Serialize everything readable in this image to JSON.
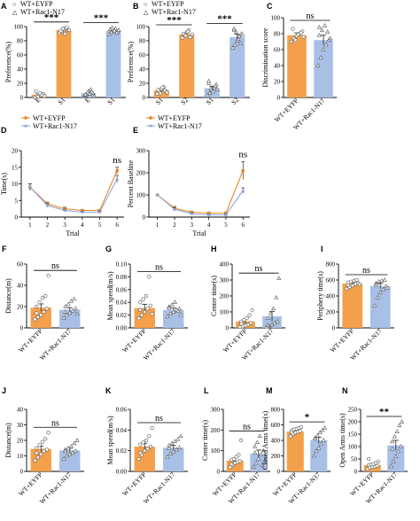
{
  "colors": {
    "eyfp": "#F4A04A",
    "rac": "#A8BFE6",
    "eyfp_line": "#E58A26",
    "rac_line": "#8FA5DC"
  },
  "legend": {
    "eyfp": "WT+EYFP",
    "rac": "WT+Rac1-N17"
  },
  "chart_data": [
    {
      "panel": "A",
      "type": "bar",
      "ylabel": "Preference(%)",
      "ylim": [
        0,
        100
      ],
      "yticks": [
        0,
        20,
        40,
        60,
        80,
        100
      ],
      "categories": [
        "E",
        "S1",
        "E",
        "S1"
      ],
      "groups": [
        "eyfp",
        "eyfp",
        "rac",
        "rac"
      ],
      "values": [
        4,
        95,
        6,
        94
      ],
      "errors": [
        1,
        1,
        1,
        1
      ],
      "points": [
        [
          0,
          2,
          4,
          3,
          5,
          9,
          1,
          6,
          3,
          2
        ],
        [
          91,
          93,
          96,
          98,
          95,
          94,
          97,
          90,
          99,
          95
        ],
        [
          2,
          4,
          9,
          11,
          6,
          3,
          7,
          5,
          8,
          2,
          4
        ],
        [
          89,
          92,
          95,
          97,
          93,
          96,
          98,
          94,
          91,
          95,
          96
        ]
      ],
      "legend": true,
      "sig": [
        {
          "from": 0,
          "to": 1,
          "text": "***"
        },
        {
          "from": 2,
          "to": 3,
          "text": "***"
        }
      ]
    },
    {
      "panel": "B",
      "type": "bar",
      "ylabel": "Preference(%)",
      "ylim": [
        0,
        100
      ],
      "yticks": [
        0,
        20,
        40,
        60,
        80,
        100
      ],
      "categories": [
        "S1",
        "S2",
        "S1",
        "S2"
      ],
      "groups": [
        "eyfp",
        "eyfp",
        "rac",
        "rac"
      ],
      "values": [
        10,
        89,
        13,
        85
      ],
      "errors": [
        2,
        2,
        3,
        4
      ],
      "points": [
        [
          5,
          8,
          12,
          15,
          9,
          11,
          6,
          14,
          10,
          7
        ],
        [
          84,
          88,
          92,
          95,
          86,
          90,
          87,
          93,
          85,
          89
        ],
        [
          3,
          6,
          10,
          14,
          18,
          20,
          12,
          8,
          16,
          11,
          23
        ],
        [
          70,
          74,
          80,
          86,
          90,
          95,
          92,
          82,
          76,
          88,
          97
        ]
      ],
      "legend": true,
      "sig": [
        {
          "from": 0,
          "to": 1,
          "text": "***"
        },
        {
          "from": 2,
          "to": 3,
          "text": "***"
        }
      ]
    },
    {
      "panel": "C",
      "type": "bar",
      "ylabel": "Discrimination score",
      "ylim": [
        0,
        100
      ],
      "yticks": [
        0,
        20,
        40,
        60,
        80,
        100
      ],
      "categories": [
        "WT+EYFP",
        "WT+Rac1-N17"
      ],
      "groups": [
        "eyfp",
        "rac"
      ],
      "values": [
        78,
        72
      ],
      "errors": [
        3,
        6
      ],
      "points": [
        [
          70,
          74,
          77,
          80,
          83,
          86,
          72,
          79,
          81,
          76
        ],
        [
          40,
          50,
          60,
          66,
          72,
          78,
          84,
          90,
          82,
          74,
          88
        ]
      ],
      "sig": [
        {
          "from": 0,
          "to": 1,
          "text": "ns"
        }
      ]
    },
    {
      "panel": "D",
      "type": "line",
      "xlabel": "Trial",
      "ylabel": "Time(s)",
      "ylim": [
        0,
        20
      ],
      "yticks": [
        0,
        5,
        10,
        15,
        20
      ],
      "x": [
        1,
        2,
        3,
        4,
        5,
        6
      ],
      "xlim": [
        0.5,
        6.4
      ],
      "series": [
        {
          "name": "WT+EYFP",
          "group": "eyfp",
          "values": [
            9,
            4,
            2.5,
            2,
            2,
            14
          ],
          "errors": [
            1,
            0.5,
            0.5,
            0.3,
            0.3,
            1
          ]
        },
        {
          "name": "WT+Rac1-N17",
          "group": "rac",
          "values": [
            9,
            3.5,
            2,
            1.5,
            1.5,
            11.5
          ],
          "errors": [
            1,
            0.5,
            0.4,
            0.3,
            0.3,
            1
          ]
        }
      ],
      "legend": true,
      "sig_text": "ns",
      "sig_x": 6
    },
    {
      "panel": "E",
      "type": "line",
      "xlabel": "Trial",
      "ylabel": "Percent Baseline",
      "ylim": [
        0,
        300
      ],
      "yticks": [
        0,
        100,
        200,
        300
      ],
      "x": [
        1,
        2,
        3,
        4,
        5,
        6
      ],
      "xlim": [
        0.5,
        6.4
      ],
      "series": [
        {
          "name": "WT+EYFP",
          "group": "eyfp",
          "values": [
            100,
            40,
            22,
            18,
            18,
            210
          ],
          "errors": [
            0,
            8,
            5,
            5,
            5,
            40
          ]
        },
        {
          "name": "WT+Rac1-N17",
          "group": "rac",
          "values": [
            100,
            35,
            15,
            10,
            10,
            120
          ],
          "errors": [
            0,
            7,
            5,
            4,
            4,
            12
          ]
        }
      ],
      "legend": true,
      "sig_text": "ns",
      "sig_x": 6
    },
    {
      "panel": "F",
      "type": "bar",
      "ylabel": "Distance(m)",
      "ylim": [
        0,
        60
      ],
      "yticks": [
        0,
        20,
        40,
        60
      ],
      "categories": [
        "WT+EYFP",
        "WT+Rac1-N17"
      ],
      "groups": [
        "eyfp",
        "rac"
      ],
      "values": [
        19,
        17
      ],
      "errors": [
        3.5,
        2
      ],
      "points": [
        [
          8,
          10,
          12,
          15,
          18,
          20,
          24,
          28,
          30,
          49,
          14
        ],
        [
          9,
          12,
          14,
          16,
          18,
          20,
          22,
          25,
          27,
          13,
          15
        ]
      ],
      "sig": [
        {
          "from": 0,
          "to": 1,
          "text": "ns"
        }
      ]
    },
    {
      "panel": "G",
      "type": "bar",
      "ylabel": "Mean speed(m/s)",
      "ylim": [
        0,
        0.1
      ],
      "yticks": [
        0,
        0.02,
        0.04,
        0.06,
        0.08,
        0.1
      ],
      "tickfmt": 2,
      "categories": [
        "WT+EYFP",
        "WT+Rac1-N17"
      ],
      "groups": [
        "eyfp",
        "rac"
      ],
      "values": [
        0.031,
        0.028
      ],
      "errors": [
        0.006,
        0.003
      ],
      "points": [
        [
          0.015,
          0.02,
          0.025,
          0.03,
          0.035,
          0.04,
          0.045,
          0.05,
          0.08,
          0.022,
          0.028
        ],
        [
          0.018,
          0.022,
          0.025,
          0.028,
          0.03,
          0.033,
          0.036,
          0.04,
          0.026,
          0.02,
          0.031
        ]
      ],
      "sig": [
        {
          "from": 0,
          "to": 1,
          "text": "ns"
        }
      ]
    },
    {
      "panel": "H",
      "type": "bar",
      "ylabel": "Center time(s)",
      "ylim": [
        0,
        400
      ],
      "yticks": [
        0,
        100,
        200,
        300,
        400
      ],
      "categories": [
        "WT+EYFP",
        "WT+Rac1-N17"
      ],
      "groups": [
        "eyfp",
        "rac"
      ],
      "values": [
        40,
        72
      ],
      "errors": [
        12,
        30
      ],
      "points": [
        [
          5,
          10,
          15,
          20,
          30,
          40,
          50,
          60,
          80,
          110,
          25
        ],
        [
          5,
          10,
          20,
          30,
          40,
          60,
          90,
          120,
          190,
          310,
          15
        ]
      ],
      "sig": [
        {
          "from": 0,
          "to": 1,
          "text": "ns"
        }
      ]
    },
    {
      "panel": "I",
      "type": "bar",
      "ylabel": "Periphery time(s)",
      "ylim": [
        0,
        800
      ],
      "yticks": [
        0,
        200,
        400,
        600,
        800
      ],
      "categories": [
        "WT+EYFP",
        "WT+Rac1-N17"
      ],
      "groups": [
        "eyfp",
        "rac"
      ],
      "values": [
        555,
        525
      ],
      "errors": [
        12,
        30
      ],
      "points": [
        [
          490,
          510,
          530,
          550,
          560,
          570,
          580,
          590,
          600,
          545,
          535
        ],
        [
          280,
          380,
          440,
          480,
          520,
          560,
          580,
          590,
          600,
          500,
          540
        ]
      ],
      "sig": [
        {
          "from": 0,
          "to": 1,
          "text": "ns"
        }
      ]
    },
    {
      "panel": "J",
      "type": "bar",
      "ylabel": "Distance(m)",
      "ylim": [
        0,
        40
      ],
      "yticks": [
        0,
        10,
        20,
        30,
        40
      ],
      "categories": [
        "WT+EYFP",
        "WT+Rac1-N17"
      ],
      "groups": [
        "eyfp",
        "rac"
      ],
      "values": [
        14.5,
        13.5
      ],
      "errors": [
        1.8,
        1.5
      ],
      "points": [
        [
          7,
          9,
          11,
          13,
          14,
          15,
          17,
          19,
          21,
          25,
          12
        ],
        [
          8,
          10,
          11,
          12,
          13,
          14,
          15,
          16,
          18,
          20,
          13
        ]
      ],
      "sig": [
        {
          "from": 0,
          "to": 1,
          "text": "ns"
        }
      ]
    },
    {
      "panel": "K",
      "type": "bar",
      "ylabel": "Mean speed(m/s)",
      "ylim": [
        0,
        0.06
      ],
      "yticks": [
        0,
        0.02,
        0.04,
        0.06
      ],
      "tickfmt": 2,
      "categories": [
        "WT+EYFP",
        "WT+Rac1-N17"
      ],
      "groups": [
        "eyfp",
        "rac"
      ],
      "values": [
        0.024,
        0.023
      ],
      "errors": [
        0.003,
        0.002
      ],
      "points": [
        [
          0.012,
          0.016,
          0.02,
          0.022,
          0.024,
          0.026,
          0.028,
          0.03,
          0.034,
          0.042,
          0.018
        ],
        [
          0.014,
          0.017,
          0.019,
          0.021,
          0.023,
          0.025,
          0.027,
          0.029,
          0.031,
          0.034,
          0.022
        ]
      ],
      "sig": [
        {
          "from": 0,
          "to": 1,
          "text": "ns"
        }
      ]
    },
    {
      "panel": "L",
      "type": "bar",
      "ylabel": "Center time(s)",
      "ylim": [
        0,
        300
      ],
      "yticks": [
        0,
        100,
        200,
        300
      ],
      "categories": [
        "WT+EYFP",
        "WT+Rac1-N17"
      ],
      "groups": [
        "eyfp",
        "rac"
      ],
      "values": [
        52,
        85
      ],
      "errors": [
        12,
        18
      ],
      "points": [
        [
          20,
          30,
          40,
          45,
          50,
          55,
          60,
          70,
          80,
          150,
          35
        ],
        [
          20,
          40,
          60,
          80,
          100,
          120,
          140,
          170,
          30,
          50,
          90
        ]
      ],
      "sig": [
        {
          "from": 0,
          "to": 1,
          "text": "ns"
        }
      ]
    },
    {
      "panel": "M",
      "type": "bar",
      "ylabel": "Closed Arms time(s)",
      "ylim": [
        0,
        800
      ],
      "yticks": [
        0,
        200,
        400,
        600,
        800
      ],
      "categories": [
        "WT+EYFP",
        "WT+Rac1-N17"
      ],
      "groups": [
        "eyfp",
        "rac"
      ],
      "values": [
        515,
        400
      ],
      "errors": [
        15,
        40
      ],
      "points": [
        [
          450,
          480,
          500,
          510,
          520,
          530,
          540,
          550,
          560,
          570,
          505
        ],
        [
          200,
          260,
          300,
          350,
          400,
          430,
          460,
          500,
          530,
          560,
          420
        ]
      ],
      "sig": [
        {
          "from": 0,
          "to": 1,
          "text": "*"
        }
      ]
    },
    {
      "panel": "N",
      "type": "bar",
      "ylabel": "Open Arms time(s)",
      "ylim": [
        0,
        250
      ],
      "yticks": [
        0,
        50,
        100,
        150,
        200,
        250
      ],
      "categories": [
        "WT+EYFP",
        "WT+Rac1-N17"
      ],
      "groups": [
        "eyfp",
        "rac"
      ],
      "values": [
        25,
        105
      ],
      "errors": [
        5,
        20
      ],
      "points": [
        [
          10,
          15,
          18,
          20,
          22,
          25,
          28,
          30,
          35,
          40,
          50
        ],
        [
          20,
          40,
          60,
          80,
          100,
          120,
          140,
          160,
          185,
          200,
          90
        ]
      ],
      "sig": [
        {
          "from": 0,
          "to": 1,
          "text": "**"
        }
      ]
    }
  ]
}
